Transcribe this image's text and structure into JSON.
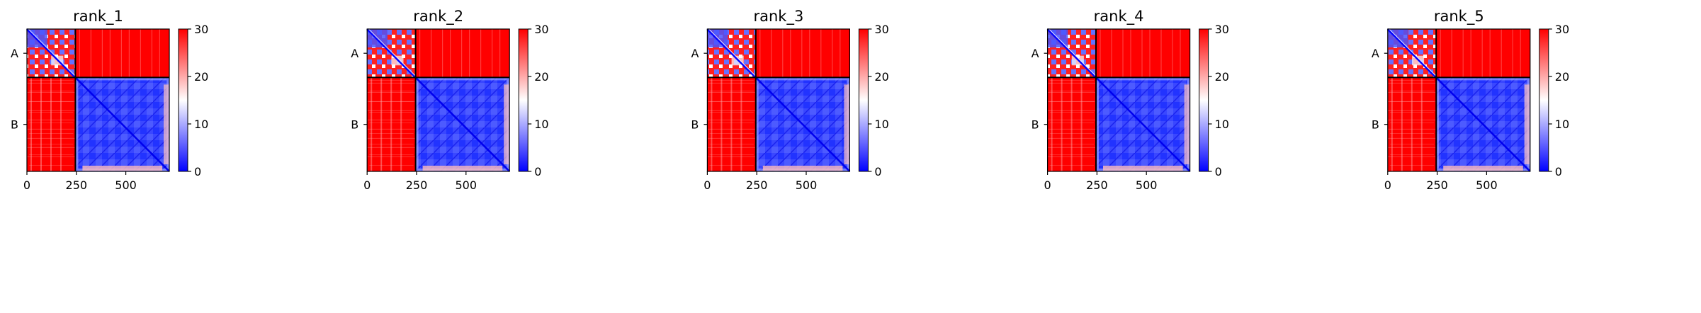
{
  "chart_data": [
    {
      "type": "heatmap",
      "title": "rank_1",
      "x_ticks": [
        0,
        250,
        500
      ],
      "xlim": [
        0,
        720
      ],
      "chain_boundary": 245,
      "y_tick_labels": [
        "A",
        "B"
      ],
      "colorbar": {
        "ticks": [
          0,
          10,
          20,
          30
        ],
        "vmin": 0,
        "vmax": 30,
        "cmap": "bwr"
      }
    },
    {
      "type": "heatmap",
      "title": "rank_2",
      "x_ticks": [
        0,
        250,
        500
      ],
      "xlim": [
        0,
        720
      ],
      "chain_boundary": 245,
      "y_tick_labels": [
        "A",
        "B"
      ],
      "colorbar": {
        "ticks": [
          0,
          10,
          20,
          30
        ],
        "vmin": 0,
        "vmax": 30,
        "cmap": "bwr"
      }
    },
    {
      "type": "heatmap",
      "title": "rank_3",
      "x_ticks": [
        0,
        250,
        500
      ],
      "xlim": [
        0,
        720
      ],
      "chain_boundary": 245,
      "y_tick_labels": [
        "A",
        "B"
      ],
      "colorbar": {
        "ticks": [
          0,
          10,
          20,
          30
        ],
        "vmin": 0,
        "vmax": 30,
        "cmap": "bwr"
      }
    },
    {
      "type": "heatmap",
      "title": "rank_4",
      "x_ticks": [
        0,
        250,
        500
      ],
      "xlim": [
        0,
        720
      ],
      "chain_boundary": 245,
      "y_tick_labels": [
        "A",
        "B"
      ],
      "colorbar": {
        "ticks": [
          0,
          10,
          20,
          30
        ],
        "vmin": 0,
        "vmax": 30,
        "cmap": "bwr"
      }
    },
    {
      "type": "heatmap",
      "title": "rank_5",
      "x_ticks": [
        0,
        250,
        500
      ],
      "xlim": [
        0,
        720
      ],
      "chain_boundary": 245,
      "y_tick_labels": [
        "A",
        "B"
      ],
      "colorbar": {
        "ticks": [
          0,
          10,
          20,
          30
        ],
        "vmin": 0,
        "vmax": 30,
        "cmap": "bwr"
      }
    }
  ],
  "colors": {
    "high": "#ff0000",
    "mid": "#ffffff",
    "low": "#0000ff",
    "axis": "#000000"
  }
}
